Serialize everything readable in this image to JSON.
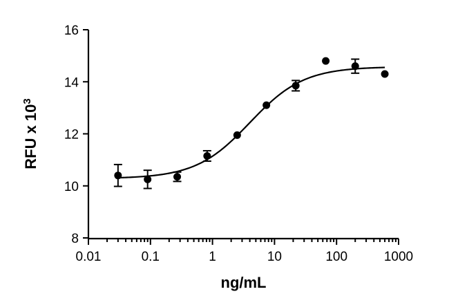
{
  "chart_data": {
    "type": "scatter",
    "title": "",
    "xlabel": "ng/mL",
    "ylabel_base": "RFU x 10",
    "ylabel_exp": "3",
    "x_scale": "log",
    "xlim": [
      0.01,
      1000
    ],
    "ylim": [
      8,
      16
    ],
    "x_ticks": [
      0.01,
      0.1,
      1,
      10,
      100,
      1000
    ],
    "x_tick_labels": [
      "0.01",
      "0.1",
      "1",
      "10",
      "100",
      "1000"
    ],
    "y_ticks": [
      8,
      10,
      12,
      14,
      16
    ],
    "y_tick_labels": [
      "8",
      "10",
      "12",
      "14",
      "16"
    ],
    "grid": false,
    "legend": "none",
    "points": [
      {
        "x": 0.03,
        "y": 10.4,
        "err": 0.42
      },
      {
        "x": 0.09,
        "y": 10.25,
        "err": 0.35
      },
      {
        "x": 0.27,
        "y": 10.35,
        "err": 0.18
      },
      {
        "x": 0.82,
        "y": 11.15,
        "err": 0.2
      },
      {
        "x": 2.5,
        "y": 11.95,
        "err": 0
      },
      {
        "x": 7.4,
        "y": 13.1,
        "err": 0
      },
      {
        "x": 22,
        "y": 13.85,
        "err": 0.2
      },
      {
        "x": 67,
        "y": 14.8,
        "err": 0
      },
      {
        "x": 200,
        "y": 14.6,
        "err": 0.27
      },
      {
        "x": 600,
        "y": 14.3,
        "err": 0
      }
    ],
    "fit": {
      "model": "4PL",
      "bottom": 10.28,
      "top": 14.58,
      "ec50": 4.0,
      "hill": 1.0
    }
  }
}
